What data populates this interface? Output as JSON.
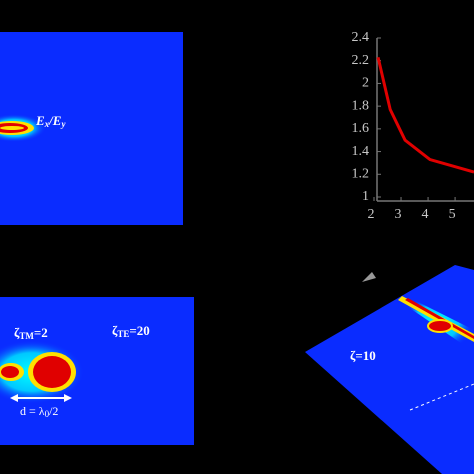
{
  "chart_data": {
    "type": "line",
    "x": [
      2.15,
      2.6,
      3.15,
      4.07,
      5.7
    ],
    "series": [
      {
        "color": "#e00000",
        "values": [
          2.23,
          1.77,
          1.5,
          1.33,
          1.22
        ]
      }
    ],
    "xlim": [
      2,
      5.7
    ],
    "xticks": [
      2,
      3,
      4,
      5
    ],
    "ylim": [
      1,
      2.4
    ],
    "yticks": [
      1,
      {
        "value": 1.2,
        "label": "1.2"
      },
      {
        "value": 1.4,
        "label": "1.4"
      },
      {
        "value": 1.6,
        "label": "1.6"
      },
      {
        "value": 1.8,
        "label": "1.8"
      },
      2,
      {
        "value": 2.2,
        "label": "2.2"
      },
      {
        "value": 2.4,
        "label": "2.4"
      }
    ]
  },
  "panel_a": {
    "label": [
      "E",
      "x",
      "/E",
      "y"
    ]
  },
  "panel_c": {
    "zeta_tm": [
      "ζ",
      "TM",
      "=2"
    ],
    "zeta_te": [
      "ζ",
      "TE",
      "=20"
    ],
    "distance": [
      "d = λ",
      "0",
      "/2"
    ]
  },
  "panel_d": {
    "zeta": "ζ=10"
  }
}
